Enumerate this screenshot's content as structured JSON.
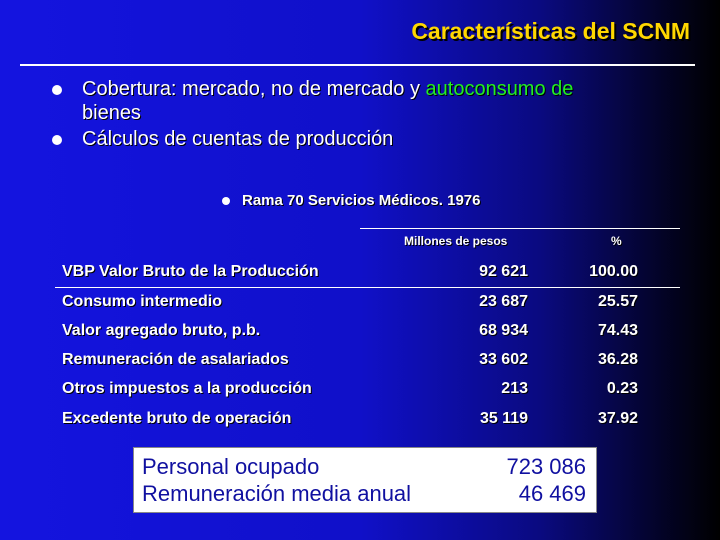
{
  "title": "Características del SCNM",
  "bullets": [
    {
      "prefix": "Cobertura: mercado, no de mercado y ",
      "highlight": "autoconsumo de",
      "suffix": "bienes"
    },
    {
      "text": "Cálculos de cuentas de producción"
    }
  ],
  "subbullet": "Rama 70 Servicios Médicos. 1976",
  "table": {
    "col_value": "Millones de pesos",
    "col_pct": "%",
    "rows": [
      {
        "label": "VBP Valor Bruto de la Producción",
        "value": "92 621",
        "pct": "100.00"
      },
      {
        "label": "Consumo intermedio",
        "value": "23 687",
        "pct": "25.57"
      },
      {
        "label": " Valor agregado bruto, p.b.",
        "value": "68 934",
        "pct": "74.43"
      },
      {
        "label": "Remuneración de asalariados",
        "value": "33 602",
        "pct": "36.28"
      },
      {
        "label": "Otros impuestos a la producción",
        "value": "213",
        "pct": "0.23"
      },
      {
        "label": "Excedente bruto de operación",
        "value": "35 119",
        "pct": "37.92"
      }
    ]
  },
  "summary": {
    "personal_label": "Personal ocupado",
    "personal_value": "723 086",
    "remun_label": "Remuneración media anual",
    "remun_value": "46 469"
  }
}
